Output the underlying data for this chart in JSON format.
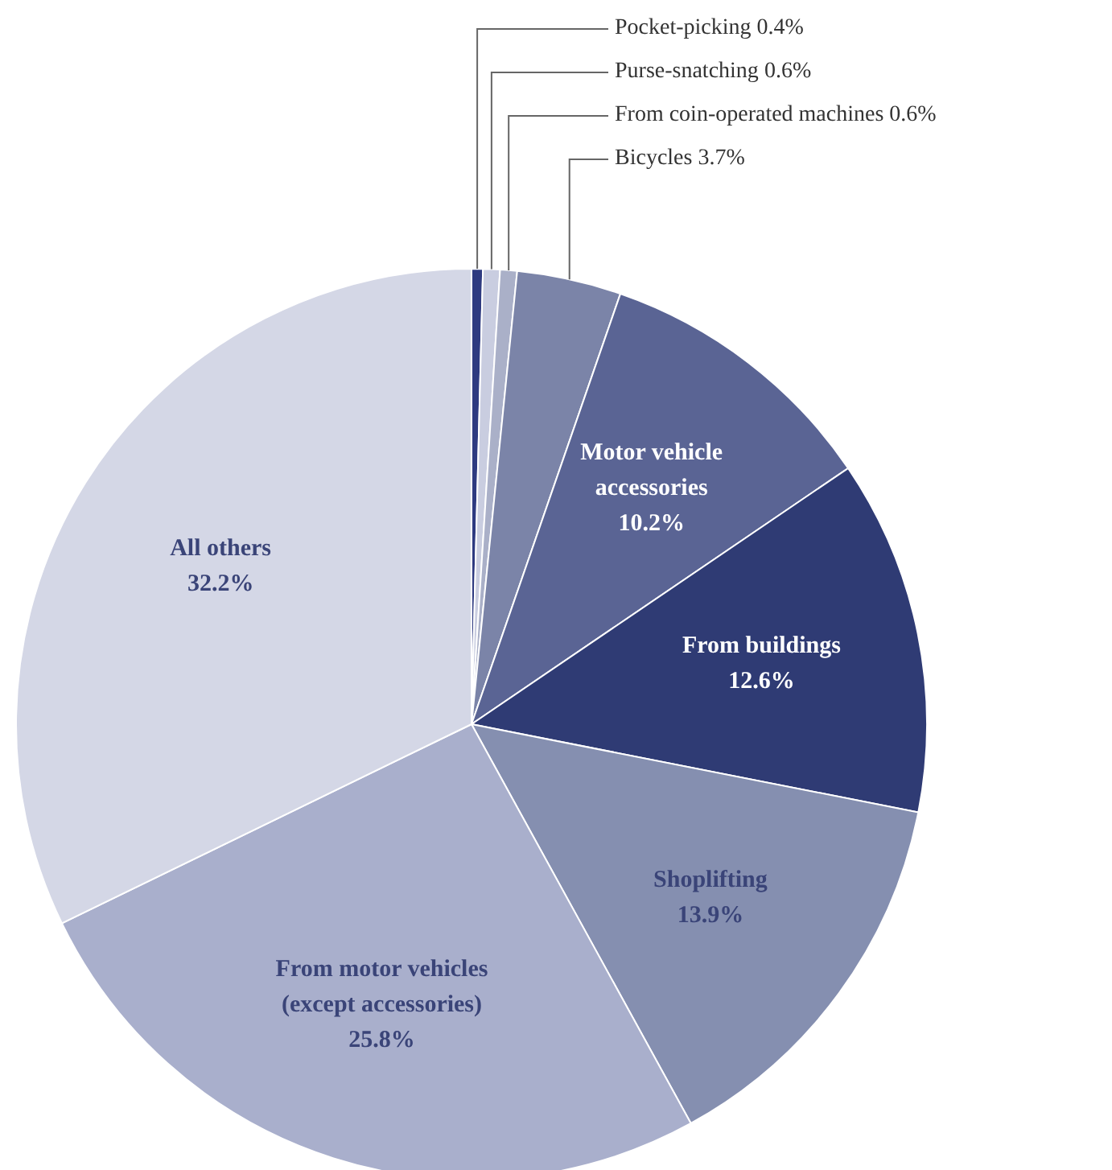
{
  "chart_data": {
    "type": "pie",
    "categories": [
      "Pocket-picking",
      "Purse-snatching",
      "From coin-operated machines",
      "Bicycles",
      "Motor vehicle accessories",
      "From buildings",
      "Shoplifting",
      "From motor vehicles (except accessories)",
      "All others"
    ],
    "values": [
      0.4,
      0.6,
      0.6,
      3.7,
      10.2,
      12.6,
      13.9,
      25.8,
      32.2
    ],
    "colors": [
      "#2e3a80",
      "#c9cde0",
      "#aab0c8",
      "#7b84a8",
      "#5a6494",
      "#2f3b74",
      "#858fb0",
      "#a9afcc",
      "#d4d7e6"
    ],
    "value_labels": [
      "0.4%",
      "0.6%",
      "0.6%",
      "3.7%",
      "10.2%",
      "12.6%",
      "13.9%",
      "25.8%",
      "32.2%"
    ]
  }
}
